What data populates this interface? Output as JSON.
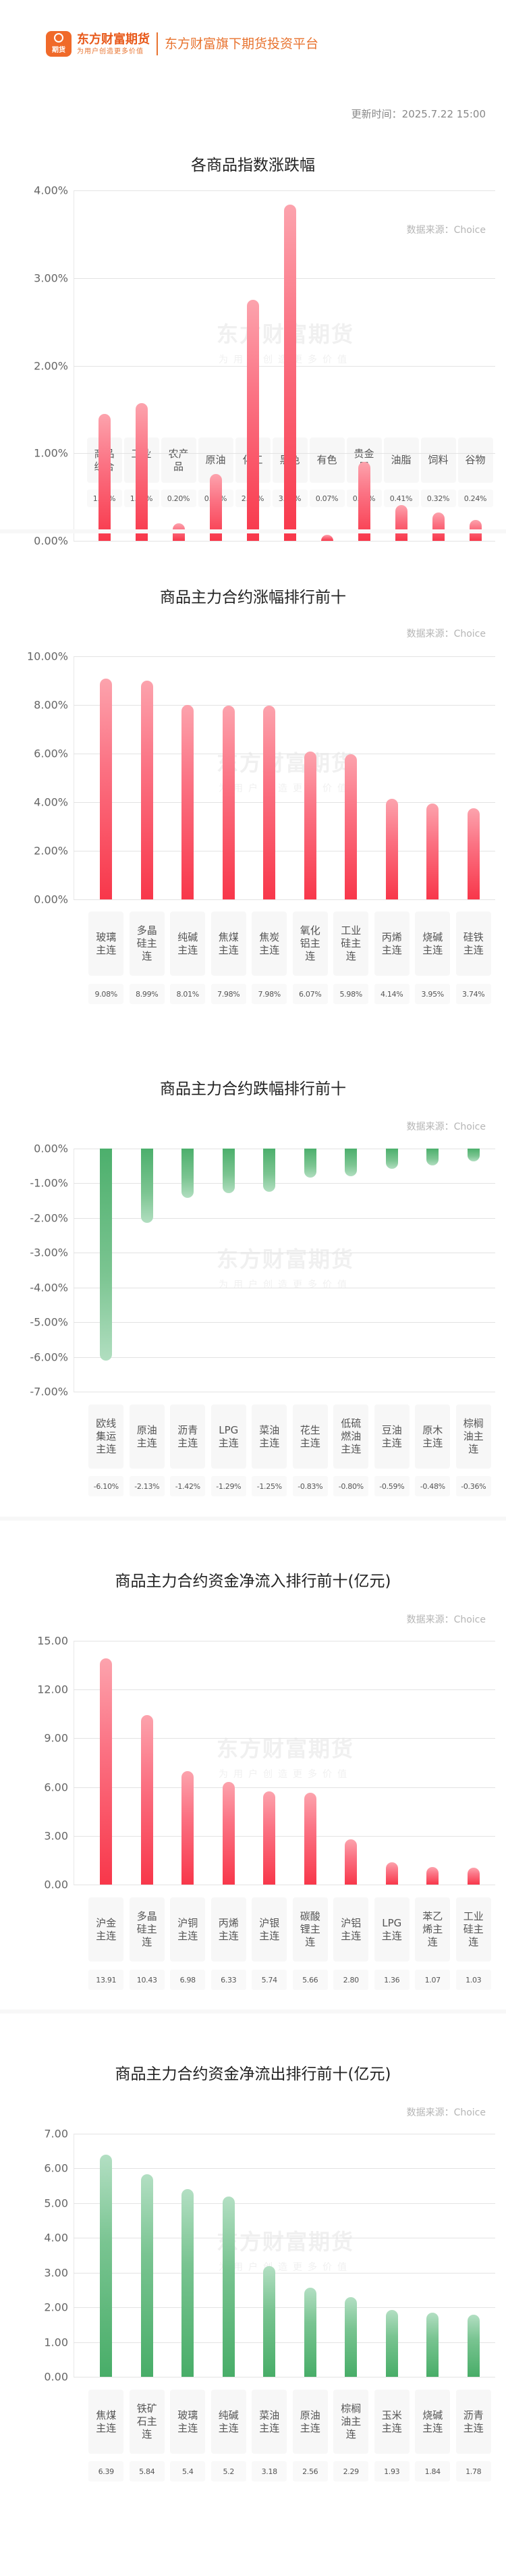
{
  "header": {
    "badge_text": "期货",
    "brand_name": "东方财富期货",
    "brand_tagline": "为用户创造更多价值",
    "slogan": "东方财富旗下期货投资平台",
    "update_time": "更新时间：2025.7.22 15:00"
  },
  "watermark": {
    "line1": "东方财富期货",
    "line2": "为用户创造更多价值"
  },
  "colors": {
    "brand": "#f06a2a",
    "rise": "#f8374a",
    "fall": "#4caf6c"
  },
  "chart_data": [
    {
      "type": "bar",
      "title": "各商品指数涨跌幅",
      "source": "数据来源：Choice",
      "categories": [
        "商品综合",
        "工业品",
        "农产品",
        "原油",
        "化工",
        "黑色",
        "有色",
        "贵金属",
        "油脂",
        "饲料",
        "谷物"
      ],
      "values": [
        1.45,
        1.57,
        0.2,
        0.76,
        2.75,
        3.84,
        0.07,
        0.9,
        0.41,
        0.32,
        0.24
      ],
      "value_labels": [
        "1.45%",
        "1.57%",
        "0.20%",
        "0.76%",
        "2.75%",
        "3.84%",
        "0.07%",
        "0.90%",
        "0.41%",
        "0.32%",
        "0.24%"
      ],
      "yticks": [
        "4.00%",
        "3.00%",
        "2.00%",
        "1.00%",
        "0.00%"
      ],
      "ylim": [
        0,
        4
      ],
      "xlabel": "",
      "ylabel": "",
      "grid": true,
      "color": "red"
    },
    {
      "type": "bar",
      "title": "商品主力合约涨幅排行前十",
      "source": "数据来源：Choice",
      "categories": [
        "玻璃主连",
        "多晶硅主连",
        "纯碱主连",
        "焦煤主连",
        "焦炭主连",
        "氧化铝主连",
        "工业硅主连",
        "丙烯主连",
        "烧碱主连",
        "硅铁主连"
      ],
      "values": [
        9.08,
        8.99,
        8.01,
        7.98,
        7.98,
        6.07,
        5.98,
        4.14,
        3.95,
        3.74
      ],
      "value_labels": [
        "9.08%",
        "8.99%",
        "8.01%",
        "7.98%",
        "7.98%",
        "6.07%",
        "5.98%",
        "4.14%",
        "3.95%",
        "3.74%"
      ],
      "yticks": [
        "10.00%",
        "8.00%",
        "6.00%",
        "4.00%",
        "2.00%",
        "0.00%"
      ],
      "ylim": [
        0,
        10
      ],
      "xlabel": "",
      "ylabel": "",
      "grid": true,
      "color": "red"
    },
    {
      "type": "bar",
      "title": "商品主力合约跌幅排行前十",
      "source": "数据来源：Choice",
      "categories": [
        "欧线集运主连",
        "原油主连",
        "沥青主连",
        "LPG主连",
        "菜油主连",
        "花生主连",
        "低硫燃油主连",
        "豆油主连",
        "原木主连",
        "棕榈油主连"
      ],
      "values": [
        -6.1,
        -2.13,
        -1.42,
        -1.29,
        -1.25,
        -0.83,
        -0.8,
        -0.59,
        -0.48,
        -0.36
      ],
      "value_labels": [
        "-6.10%",
        "-2.13%",
        "-1.42%",
        "-1.29%",
        "-1.25%",
        "-0.83%",
        "-0.80%",
        "-0.59%",
        "-0.48%",
        "-0.36%"
      ],
      "yticks": [
        "0.00%",
        "-1.00%",
        "-2.00%",
        "-3.00%",
        "-4.00%",
        "-5.00%",
        "-6.00%",
        "-7.00%"
      ],
      "ylim": [
        -7,
        0
      ],
      "xlabel": "",
      "ylabel": "",
      "grid": true,
      "color": "green"
    },
    {
      "type": "bar",
      "title": "商品主力合约资金净流入排行前十(亿元)",
      "source": "数据来源：Choice",
      "categories": [
        "沪金主连",
        "多晶硅主连",
        "沪铜主连",
        "丙烯主连",
        "沪银主连",
        "碳酸锂主连",
        "沪铝主连",
        "LPG主连",
        "苯乙烯主连",
        "工业硅主连"
      ],
      "values": [
        13.91,
        10.43,
        6.98,
        6.33,
        5.74,
        5.66,
        2.8,
        1.36,
        1.07,
        1.03
      ],
      "value_labels": [
        "13.91",
        "10.43",
        "6.98",
        "6.33",
        "5.74",
        "5.66",
        "2.80",
        "1.36",
        "1.07",
        "1.03"
      ],
      "yticks": [
        "15.00",
        "12.00",
        "9.00",
        "6.00",
        "3.00",
        "0.00"
      ],
      "ylim": [
        0,
        15
      ],
      "xlabel": "",
      "ylabel": "亿元",
      "grid": true,
      "color": "red"
    },
    {
      "type": "bar",
      "title": "商品主力合约资金净流出排行前十(亿元)",
      "source": "数据来源：Choice",
      "categories": [
        "焦煤主连",
        "铁矿石主连",
        "玻璃主连",
        "纯碱主连",
        "菜油主连",
        "原油主连",
        "棕榈油主连",
        "玉米主连",
        "烧碱主连",
        "沥青主连"
      ],
      "values": [
        6.39,
        5.84,
        5.4,
        5.2,
        3.18,
        2.56,
        2.29,
        1.93,
        1.84,
        1.78
      ],
      "value_labels": [
        "6.39",
        "5.84",
        "5.4",
        "5.2",
        "3.18",
        "2.56",
        "2.29",
        "1.93",
        "1.84",
        "1.78"
      ],
      "yticks": [
        "7.00",
        "6.00",
        "5.00",
        "4.00",
        "3.00",
        "2.00",
        "1.00",
        "0.00"
      ],
      "ylim": [
        0,
        7
      ],
      "xlabel": "",
      "ylabel": "亿元",
      "grid": true,
      "color": "green"
    }
  ]
}
